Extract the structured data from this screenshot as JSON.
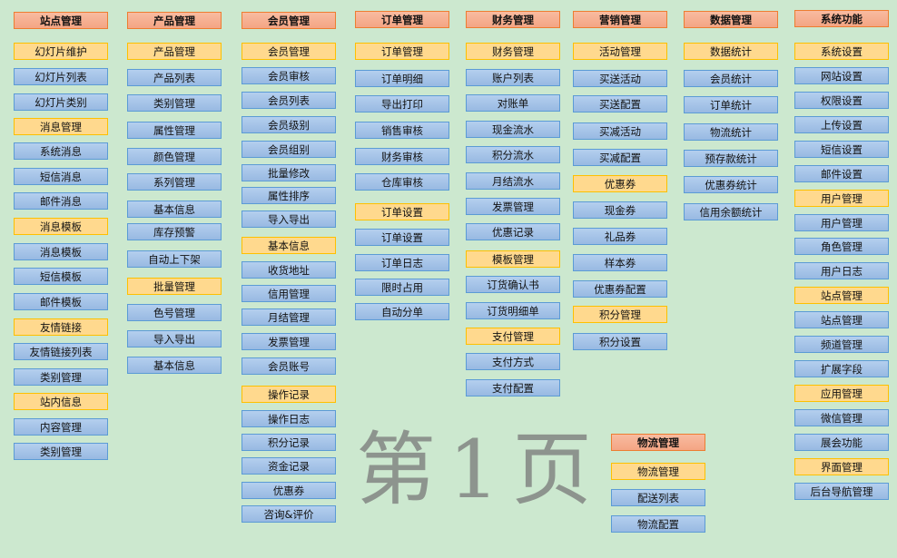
{
  "watermark": "第 1 页",
  "colors": {
    "background": "#cce8cf",
    "header": "#f4a584",
    "group": "#ffd98e",
    "item": "#a9c7ea"
  },
  "columns": [
    {
      "title": "站点管理",
      "items": [
        {
          "label": "幻灯片维护",
          "kind": "group"
        },
        {
          "label": "幻灯片列表",
          "kind": "item"
        },
        {
          "label": "幻灯片类别",
          "kind": "item"
        },
        {
          "label": "消息管理",
          "kind": "group"
        },
        {
          "label": "系统消息",
          "kind": "item"
        },
        {
          "label": "短信消息",
          "kind": "item"
        },
        {
          "label": "邮件消息",
          "kind": "item"
        },
        {
          "label": "消息模板",
          "kind": "group"
        },
        {
          "label": "消息模板",
          "kind": "item"
        },
        {
          "label": "短信模板",
          "kind": "item"
        },
        {
          "label": "邮件模板",
          "kind": "item"
        },
        {
          "label": "友情链接",
          "kind": "group"
        },
        {
          "label": "友情链接列表",
          "kind": "item"
        },
        {
          "label": "类别管理",
          "kind": "item"
        },
        {
          "label": "站内信息",
          "kind": "group"
        },
        {
          "label": "内容管理",
          "kind": "item"
        },
        {
          "label": "类别管理",
          "kind": "item"
        }
      ]
    },
    {
      "title": "产品管理",
      "items": [
        {
          "label": "产品管理",
          "kind": "group"
        },
        {
          "label": "产品列表",
          "kind": "item"
        },
        {
          "label": "类别管理",
          "kind": "item"
        },
        {
          "label": "属性管理",
          "kind": "item"
        },
        {
          "label": "颜色管理",
          "kind": "item"
        },
        {
          "label": "系列管理",
          "kind": "item"
        },
        {
          "label": "基本信息",
          "kind": "item"
        },
        {
          "label": "库存预警",
          "kind": "item"
        },
        {
          "label": "自动上下架",
          "kind": "item"
        },
        {
          "label": "批量管理",
          "kind": "group"
        },
        {
          "label": "色号管理",
          "kind": "item"
        },
        {
          "label": "导入导出",
          "kind": "item"
        },
        {
          "label": "基本信息",
          "kind": "item"
        }
      ]
    },
    {
      "title": "会员管理",
      "items": [
        {
          "label": "会员管理",
          "kind": "group"
        },
        {
          "label": "会员审核",
          "kind": "item"
        },
        {
          "label": "会员列表",
          "kind": "item"
        },
        {
          "label": "会员级别",
          "kind": "item"
        },
        {
          "label": "会员组别",
          "kind": "item"
        },
        {
          "label": "批量修改",
          "kind": "item"
        },
        {
          "label": "属性排序",
          "kind": "item"
        },
        {
          "label": "导入导出",
          "kind": "item"
        },
        {
          "label": "基本信息",
          "kind": "group"
        },
        {
          "label": "收货地址",
          "kind": "item"
        },
        {
          "label": "信用管理",
          "kind": "item"
        },
        {
          "label": "月结管理",
          "kind": "item"
        },
        {
          "label": "发票管理",
          "kind": "item"
        },
        {
          "label": "会员账号",
          "kind": "item"
        },
        {
          "label": "操作记录",
          "kind": "group"
        },
        {
          "label": "操作日志",
          "kind": "item"
        },
        {
          "label": "积分记录",
          "kind": "item"
        },
        {
          "label": "资金记录",
          "kind": "item"
        },
        {
          "label": "优惠券",
          "kind": "item"
        },
        {
          "label": "咨询&评价",
          "kind": "item"
        }
      ]
    },
    {
      "title": "订单管理",
      "items": [
        {
          "label": "订单管理",
          "kind": "group"
        },
        {
          "label": "订单明细",
          "kind": "item"
        },
        {
          "label": "导出打印",
          "kind": "item"
        },
        {
          "label": "销售审核",
          "kind": "item"
        },
        {
          "label": "财务审核",
          "kind": "item"
        },
        {
          "label": "仓库审核",
          "kind": "item"
        },
        {
          "label": "订单设置",
          "kind": "group"
        },
        {
          "label": "订单设置",
          "kind": "item"
        },
        {
          "label": "订单日志",
          "kind": "item"
        },
        {
          "label": "限时占用",
          "kind": "item"
        },
        {
          "label": "自动分单",
          "kind": "item"
        }
      ]
    },
    {
      "title": "财务管理",
      "items": [
        {
          "label": "财务管理",
          "kind": "group"
        },
        {
          "label": "账户列表",
          "kind": "item"
        },
        {
          "label": "对账单",
          "kind": "item"
        },
        {
          "label": "现金流水",
          "kind": "item"
        },
        {
          "label": "积分流水",
          "kind": "item"
        },
        {
          "label": "月结流水",
          "kind": "item"
        },
        {
          "label": "发票管理",
          "kind": "item"
        },
        {
          "label": "优惠记录",
          "kind": "item"
        },
        {
          "label": "模板管理",
          "kind": "group"
        },
        {
          "label": "订货确认书",
          "kind": "item"
        },
        {
          "label": "订货明细单",
          "kind": "item"
        },
        {
          "label": "支付管理",
          "kind": "group"
        },
        {
          "label": "支付方式",
          "kind": "item"
        },
        {
          "label": "支付配置",
          "kind": "item"
        }
      ]
    },
    {
      "title": "营销管理",
      "items": [
        {
          "label": "活动管理",
          "kind": "group"
        },
        {
          "label": "买送活动",
          "kind": "item"
        },
        {
          "label": "买送配置",
          "kind": "item"
        },
        {
          "label": "买减活动",
          "kind": "item"
        },
        {
          "label": "买减配置",
          "kind": "item"
        },
        {
          "label": "优惠券",
          "kind": "group"
        },
        {
          "label": "现金券",
          "kind": "item"
        },
        {
          "label": "礼品券",
          "kind": "item"
        },
        {
          "label": "样本券",
          "kind": "item"
        },
        {
          "label": "优惠券配置",
          "kind": "item"
        },
        {
          "label": "积分管理",
          "kind": "group"
        },
        {
          "label": "积分设置",
          "kind": "item"
        }
      ]
    },
    {
      "title": "数据管理",
      "items": [
        {
          "label": "数据统计",
          "kind": "group"
        },
        {
          "label": "会员统计",
          "kind": "item"
        },
        {
          "label": "订单统计",
          "kind": "item"
        },
        {
          "label": "物流统计",
          "kind": "item"
        },
        {
          "label": "预存款统计",
          "kind": "item"
        },
        {
          "label": "优惠券统计",
          "kind": "item"
        },
        {
          "label": "信用余额统计",
          "kind": "item"
        }
      ]
    },
    {
      "title": "系统功能",
      "items": [
        {
          "label": "系统设置",
          "kind": "group"
        },
        {
          "label": "网站设置",
          "kind": "item"
        },
        {
          "label": "权限设置",
          "kind": "item"
        },
        {
          "label": "上传设置",
          "kind": "item"
        },
        {
          "label": "短信设置",
          "kind": "item"
        },
        {
          "label": "邮件设置",
          "kind": "item"
        },
        {
          "label": "用户管理",
          "kind": "group"
        },
        {
          "label": "用户管理",
          "kind": "item"
        },
        {
          "label": "角色管理",
          "kind": "item"
        },
        {
          "label": "用户日志",
          "kind": "item"
        },
        {
          "label": "站点管理",
          "kind": "group"
        },
        {
          "label": "站点管理",
          "kind": "item"
        },
        {
          "label": "频道管理",
          "kind": "item"
        },
        {
          "label": "扩展字段",
          "kind": "item"
        },
        {
          "label": "应用管理",
          "kind": "group"
        },
        {
          "label": "微信管理",
          "kind": "item"
        },
        {
          "label": "展会功能",
          "kind": "item"
        },
        {
          "label": "界面管理",
          "kind": "group"
        },
        {
          "label": "后台导航管理",
          "kind": "item"
        }
      ]
    },
    {
      "title": "物流管理",
      "items": [
        {
          "label": "物流管理",
          "kind": "group"
        },
        {
          "label": "配送列表",
          "kind": "item"
        },
        {
          "label": "物流配置",
          "kind": "item"
        }
      ]
    }
  ]
}
